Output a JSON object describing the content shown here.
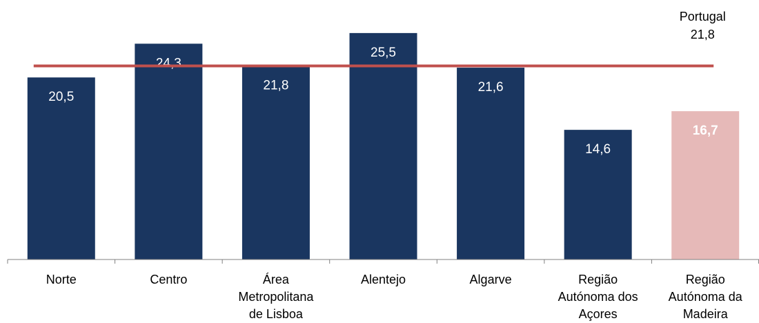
{
  "chart_data": {
    "type": "bar",
    "categories": [
      [
        "Norte"
      ],
      [
        "Centro"
      ],
      [
        "Área",
        "Metropolitana",
        "de Lisboa"
      ],
      [
        "Alentejo"
      ],
      [
        "Algarve"
      ],
      [
        "Região",
        "Autónoma dos",
        "Açores"
      ],
      [
        "Região",
        "Autónoma da",
        "Madeira"
      ]
    ],
    "values": [
      20.5,
      24.3,
      21.8,
      25.5,
      21.6,
      14.6,
      16.7
    ],
    "value_labels": [
      "20,5",
      "24,3",
      "21,8",
      "25,5",
      "21,6",
      "14,6",
      "16,7"
    ],
    "highlight_index": 6,
    "reference_line": {
      "name": "Portugal",
      "value": 21.8,
      "label": "21,8"
    },
    "ylim": [
      0,
      27.2
    ],
    "grid": false,
    "colors": {
      "bar": "#1a3660",
      "highlight": "#e6b9b8",
      "reference_line": "#c0504d",
      "value_text": "#ffffff",
      "axis": "#808080"
    }
  }
}
